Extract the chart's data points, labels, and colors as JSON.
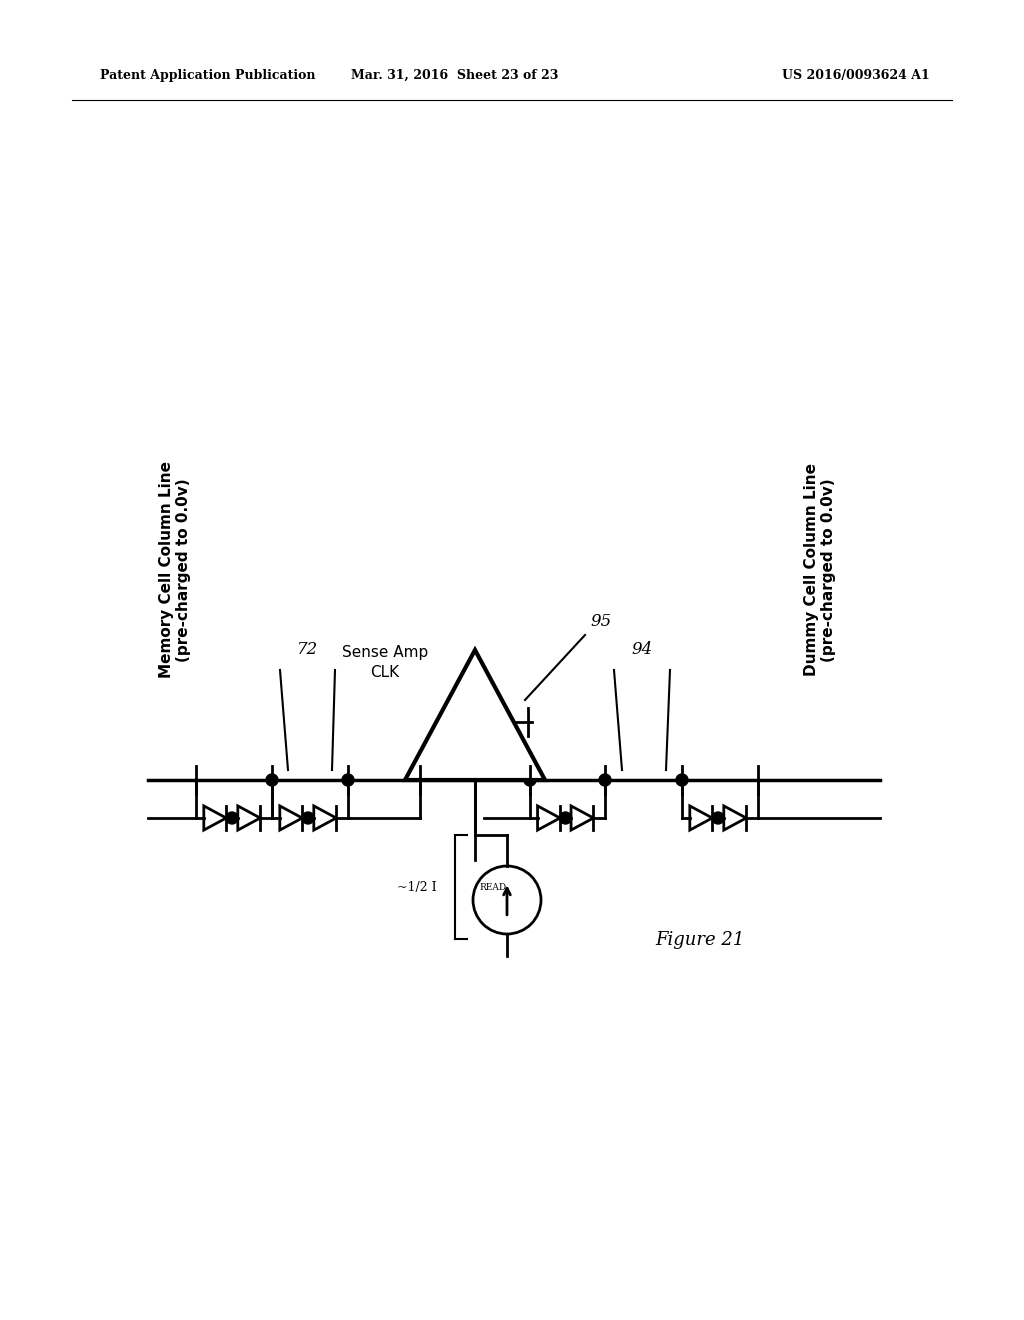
{
  "bg_color": "#ffffff",
  "header_left": "Patent Application Publication",
  "header_mid": "Mar. 31, 2016  Sheet 23 of 23",
  "header_right": "US 2016/0093624 A1",
  "figure_label": "Figure 21",
  "left_label_line1": "Memory Cell Column Line",
  "left_label_line2": "(pre-charged to 0.0v)",
  "right_label_line1": "Dummy Cell Column Line",
  "right_label_line2": "(pre-charged to 0.0v)",
  "label_72": "72",
  "label_95": "95",
  "label_94": "94",
  "sense_amp_label1": "Sense Amp",
  "sense_amp_label2": "CLK",
  "current_label": "~1/2 I",
  "current_subscript": "READ",
  "lw": 2.0,
  "lw_thin": 1.5
}
